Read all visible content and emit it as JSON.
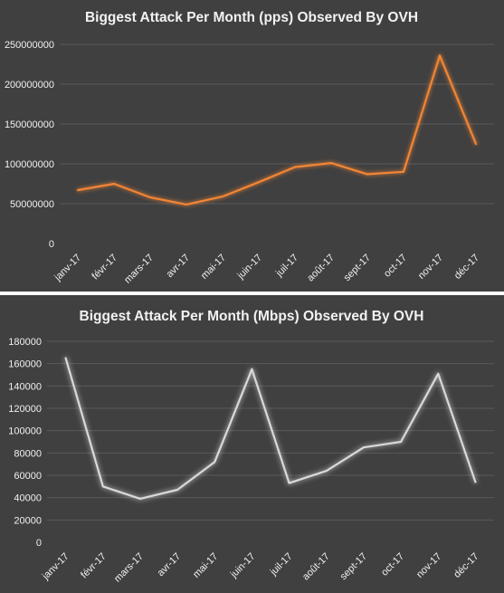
{
  "colors": {
    "background": "#404040",
    "grid": "#5a5a5a",
    "text": "#f0f0f0",
    "pps_line": "#f28534",
    "mbps_line": "#d9d9d9"
  },
  "chart_data": [
    {
      "type": "line",
      "title": "Biggest Attack Per Month (pps)  Observed By OVH",
      "xlabel": "",
      "ylabel": "",
      "categories": [
        "janv-17",
        "févr-17",
        "mars-17",
        "avr-17",
        "mai-17",
        "juin-17",
        "juil-17",
        "août-17",
        "sept-17",
        "oct-17",
        "nov-17",
        "déc-17"
      ],
      "series": [
        {
          "values": [
            67000000,
            75000000,
            58000000,
            49000000,
            59000000,
            77000000,
            96000000,
            101000000,
            87000000,
            90000000,
            236000000,
            125000000
          ]
        }
      ],
      "ylim": [
        0,
        250000000
      ],
      "yticks": [
        "0",
        "50000000",
        "100000000",
        "150000000",
        "200000000",
        "250000000"
      ],
      "grid": true,
      "legend": "none"
    },
    {
      "type": "line",
      "title": "Biggest Attack Per Month (Mbps) Observed By OVH",
      "xlabel": "",
      "ylabel": "",
      "categories": [
        "janv-17",
        "févr-17",
        "mars-17",
        "avr-17",
        "mai-17",
        "juin-17",
        "juil-17",
        "août-17",
        "sept-17",
        "oct-17",
        "nov-17",
        "déc-17"
      ],
      "series": [
        {
          "values": [
            165000,
            50000,
            39000,
            47000,
            72000,
            155000,
            53000,
            64000,
            85000,
            90000,
            151000,
            54000
          ]
        }
      ],
      "ylim": [
        0,
        180000
      ],
      "yticks": [
        "0",
        "20000",
        "40000",
        "60000",
        "80000",
        "100000",
        "120000",
        "140000",
        "160000",
        "180000"
      ],
      "grid": true,
      "legend": "none"
    }
  ]
}
